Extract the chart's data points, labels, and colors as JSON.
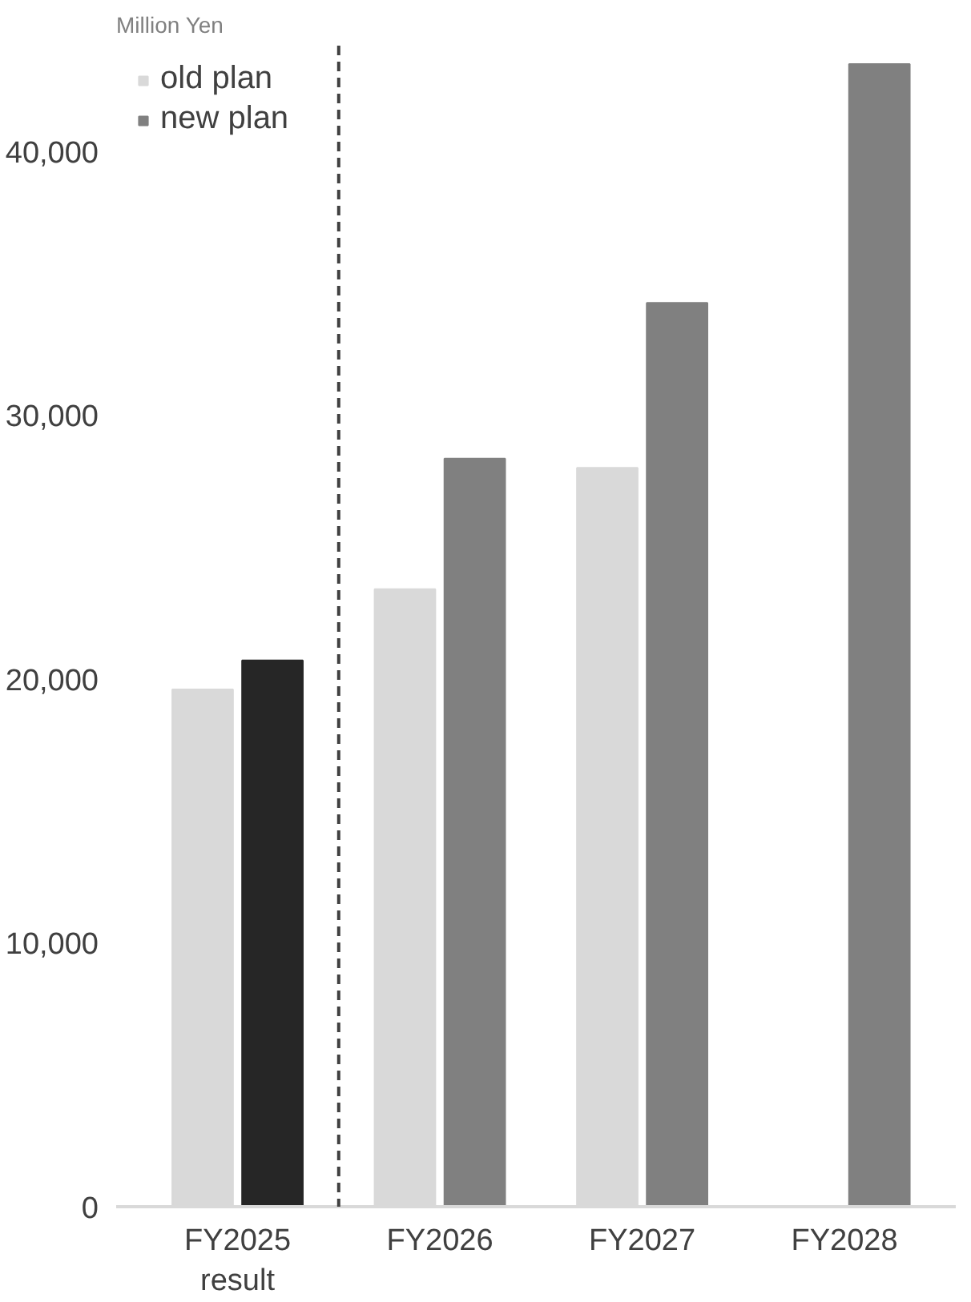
{
  "chart_data": {
    "type": "bar",
    "ylabel": "Million Yen",
    "categories": [
      "FY2025\nresult",
      "FY2026",
      "FY2027",
      "FY2028"
    ],
    "series": [
      {
        "name": "old plan",
        "color": "#d9d9d9",
        "values": [
          19600,
          23400,
          28000,
          null
        ]
      },
      {
        "name": "new plan",
        "color": "#808080",
        "colors": [
          "#262626",
          "#808080",
          "#808080",
          "#808080"
        ],
        "values": [
          20700,
          28350,
          34250,
          43300
        ]
      }
    ],
    "ylim": [
      0,
      44000
    ],
    "yticks": [
      {
        "value": 0,
        "label": "0"
      },
      {
        "value": 10000,
        "label": "10,000"
      },
      {
        "value": 20000,
        "label": "20,000"
      },
      {
        "value": 30000,
        "label": "30,000"
      },
      {
        "value": 40000,
        "label": "40,000"
      }
    ],
    "grid": false,
    "legend": "top left"
  }
}
